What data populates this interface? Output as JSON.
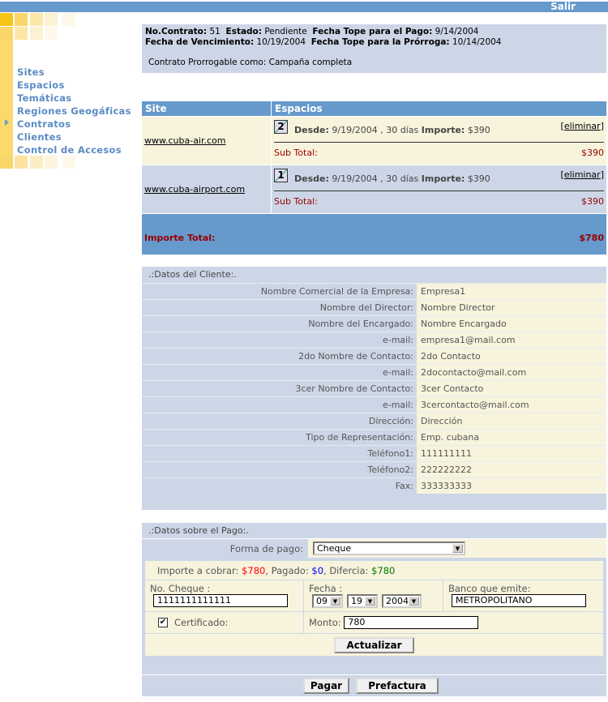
{
  "top": {
    "logout": "Salir"
  },
  "nav": {
    "items": [
      "Sites",
      "Espacios",
      "Temáticas",
      "Regiones Geogáficas",
      "Contratos",
      "Clientes",
      "Control de Accesos"
    ],
    "active": "Contratos"
  },
  "contract": {
    "no_label": "No.Contrato:",
    "no": "51",
    "estado_label": "Estado:",
    "estado": "Pendiente",
    "tope_pago_label": "Fecha Tope para el Pago:",
    "tope_pago": "9/14/2004",
    "venc_label": "Fecha de Vencimiento:",
    "venc": "10/19/2004",
    "tope_prorroga_label": "Fecha Tope para la Prórroga:",
    "tope_prorroga": "10/14/2004",
    "prorrogable": "Contrato Prorrogable como: Campaña completa"
  },
  "sites": {
    "headers": [
      "Site",
      "Espacios"
    ],
    "rows": [
      {
        "site": "www.cuba-air.com",
        "badge": "2",
        "desde_label": "Desde:",
        "desde": "9/19/2004 , 30 días",
        "importe_label": "Importe:",
        "importe": "$390",
        "remove": "eliminar",
        "subtotal_label": "Sub Total:",
        "subtotal": "$390"
      },
      {
        "site": "www.cuba-airport.com",
        "badge": "1",
        "desde_label": "Desde:",
        "desde": "9/19/2004 , 30 días",
        "importe_label": "Importe:",
        "importe": "$390",
        "remove": "eliminar",
        "subtotal_label": "Sub Total:",
        "subtotal": "$390"
      }
    ],
    "total_label": "Importe Total:",
    "total": "$780"
  },
  "client": {
    "title": ".:Datos del Cliente:.",
    "rows": [
      {
        "label": "Nombre Comercial de la Empresa:",
        "value": "Empresa1"
      },
      {
        "label": "Nombre del Director:",
        "value": "Nombre Director"
      },
      {
        "label": "Nombre del Encargado:",
        "value": "Nombre Encargado"
      },
      {
        "label": "e-mail:",
        "value": "empresa1@mail.com"
      },
      {
        "label": "2do Nombre de Contacto:",
        "value": "2do Contacto"
      },
      {
        "label": "e-mail:",
        "value": "2docontacto@mail.com"
      },
      {
        "label": "3cer Nombre de Contacto:",
        "value": "3cer Contacto"
      },
      {
        "label": "e-mail:",
        "value": "3cercontacto@mail.com"
      },
      {
        "label": "Dirección:",
        "value": "Dirección"
      },
      {
        "label": "Tipo de Representación:",
        "value": "Emp. cubana"
      },
      {
        "label": "Teléfono1:",
        "value": "111111111"
      },
      {
        "label": "Teléfono2:",
        "value": "222222222"
      },
      {
        "label": "Fax:",
        "value": "333333333"
      }
    ]
  },
  "payment": {
    "title": ".:Datos sobre el Pago:.",
    "forma_label": "Forma de pago:",
    "forma": "Cheque",
    "cobrar_label": "Importe a cobrar:",
    "cobrar": "$780",
    "pagado_label": ", Pagado:",
    "pagado": "$0",
    "diferencia_label": ", Difercia:",
    "diferencia": "$780",
    "cheque_label": "No. Cheque :",
    "cheque": "1111111111111",
    "fecha_label": "Fecha :",
    "month": "09",
    "day": "19",
    "year": "2004",
    "banco_label": "Banco que emite:",
    "banco": "METROPOLITANO",
    "certificado_label": "Certificado:",
    "certificado": true,
    "monto_label": "Monto:",
    "monto": "780",
    "update": "Actualizar",
    "pay": "Pagar",
    "preinvoice": "Prefactura"
  },
  "colors": {
    "header": "#6699cc",
    "panel": "#cdd6e6",
    "cream": "#f7f3dc",
    "subtotal": "#990000",
    "cobrar": "#ff0000",
    "pagado": "#0000ff",
    "diferencia": "#007700"
  }
}
